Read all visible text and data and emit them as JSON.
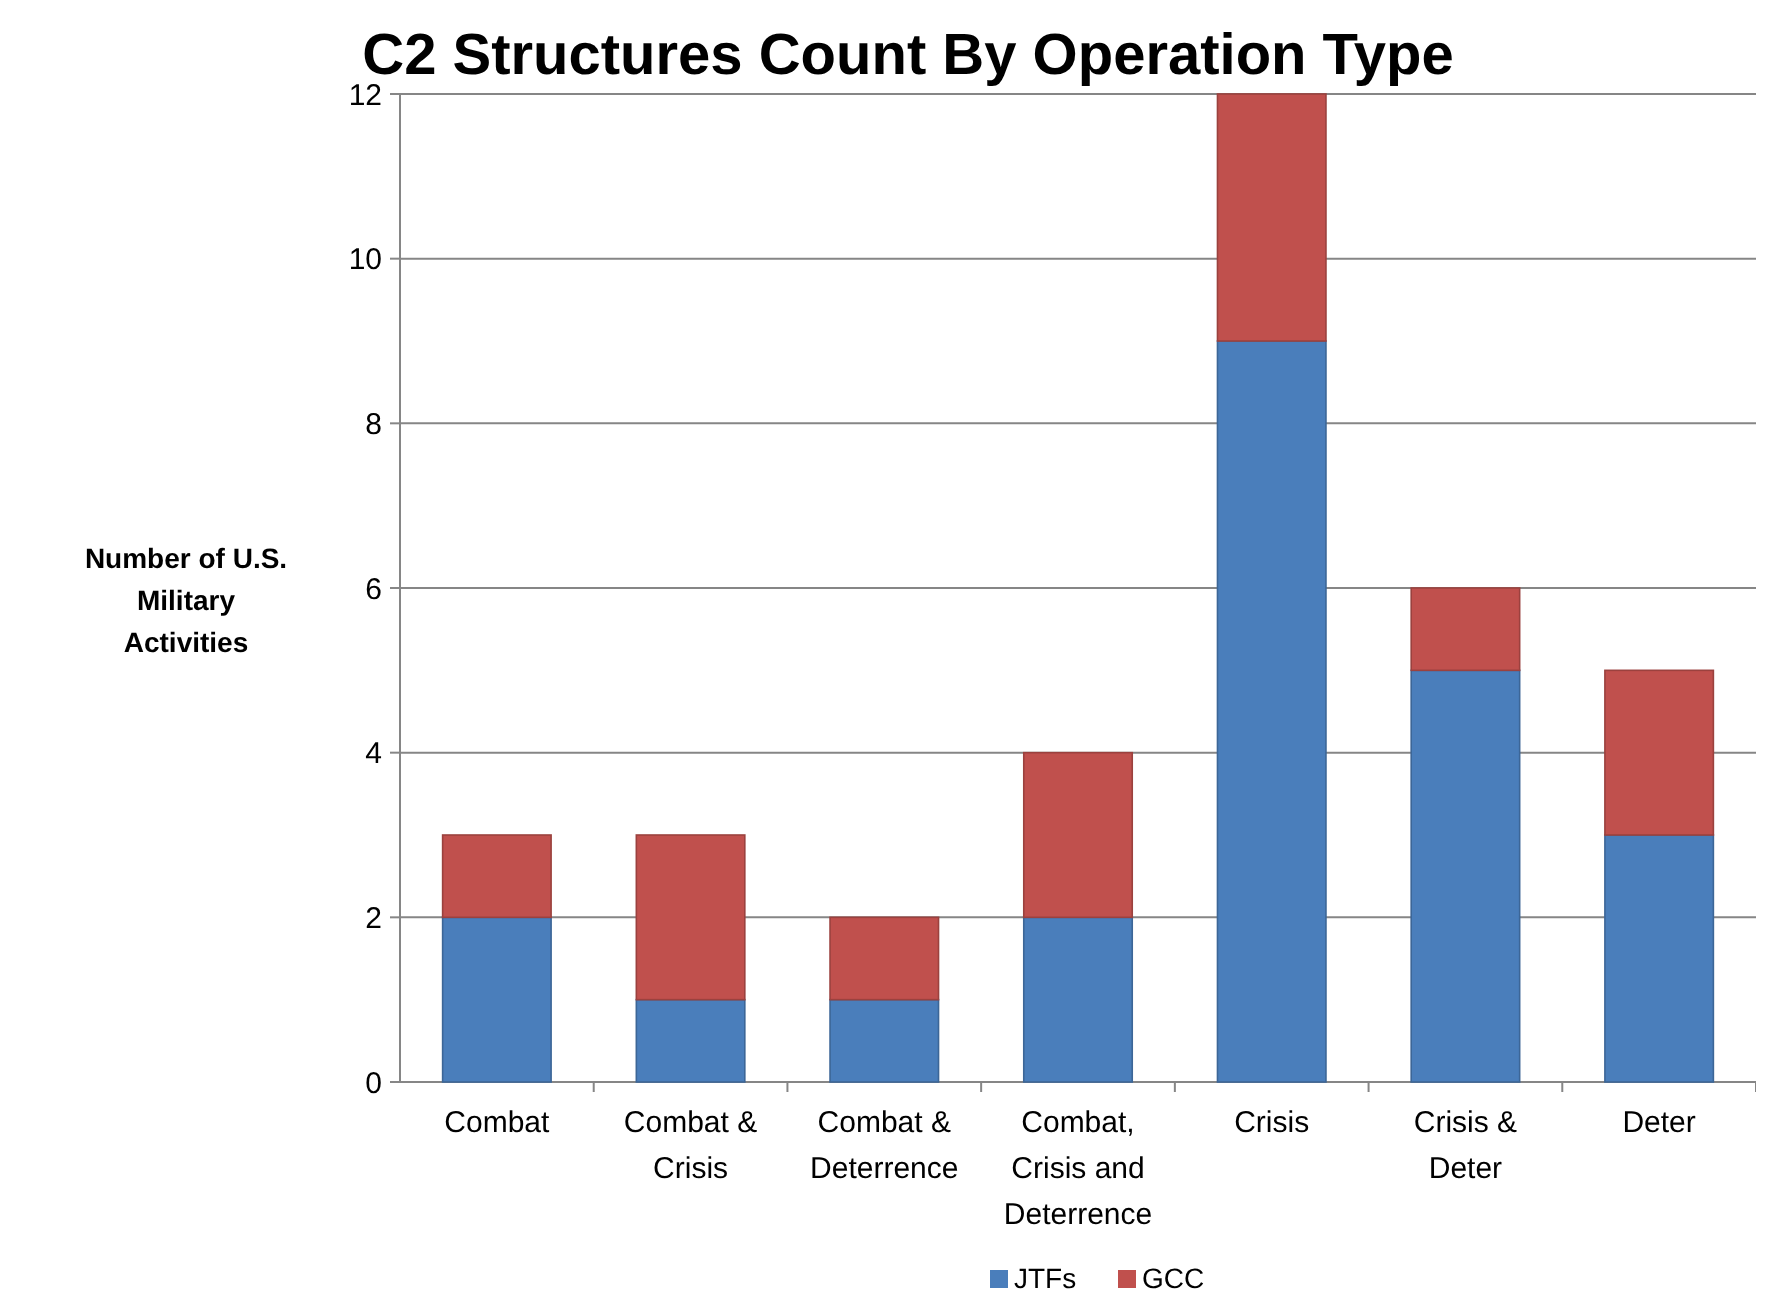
{
  "chart_data": {
    "type": "bar",
    "title": "C2 Structures Count By Operation Type",
    "ylabel": "Number of U.S. Military Activities",
    "categories": [
      "Combat",
      "Combat & Crisis",
      "Combat & Deterrence",
      "Combat, Crisis and Deterrence",
      "Crisis",
      "Crisis & Deter",
      "Deter"
    ],
    "series": [
      {
        "name": "JTFs",
        "color": "#4a7ebb",
        "values": [
          2,
          1,
          1,
          2,
          9,
          5,
          3
        ]
      },
      {
        "name": "GCC",
        "color": "#c0504d",
        "values": [
          1,
          2,
          1,
          2,
          3,
          1,
          2
        ]
      }
    ],
    "stacked": true,
    "ylim": [
      0,
      12
    ],
    "yticks": [
      0,
      2,
      4,
      6,
      8,
      10,
      12
    ],
    "grid": "y",
    "legend": "bottom"
  }
}
